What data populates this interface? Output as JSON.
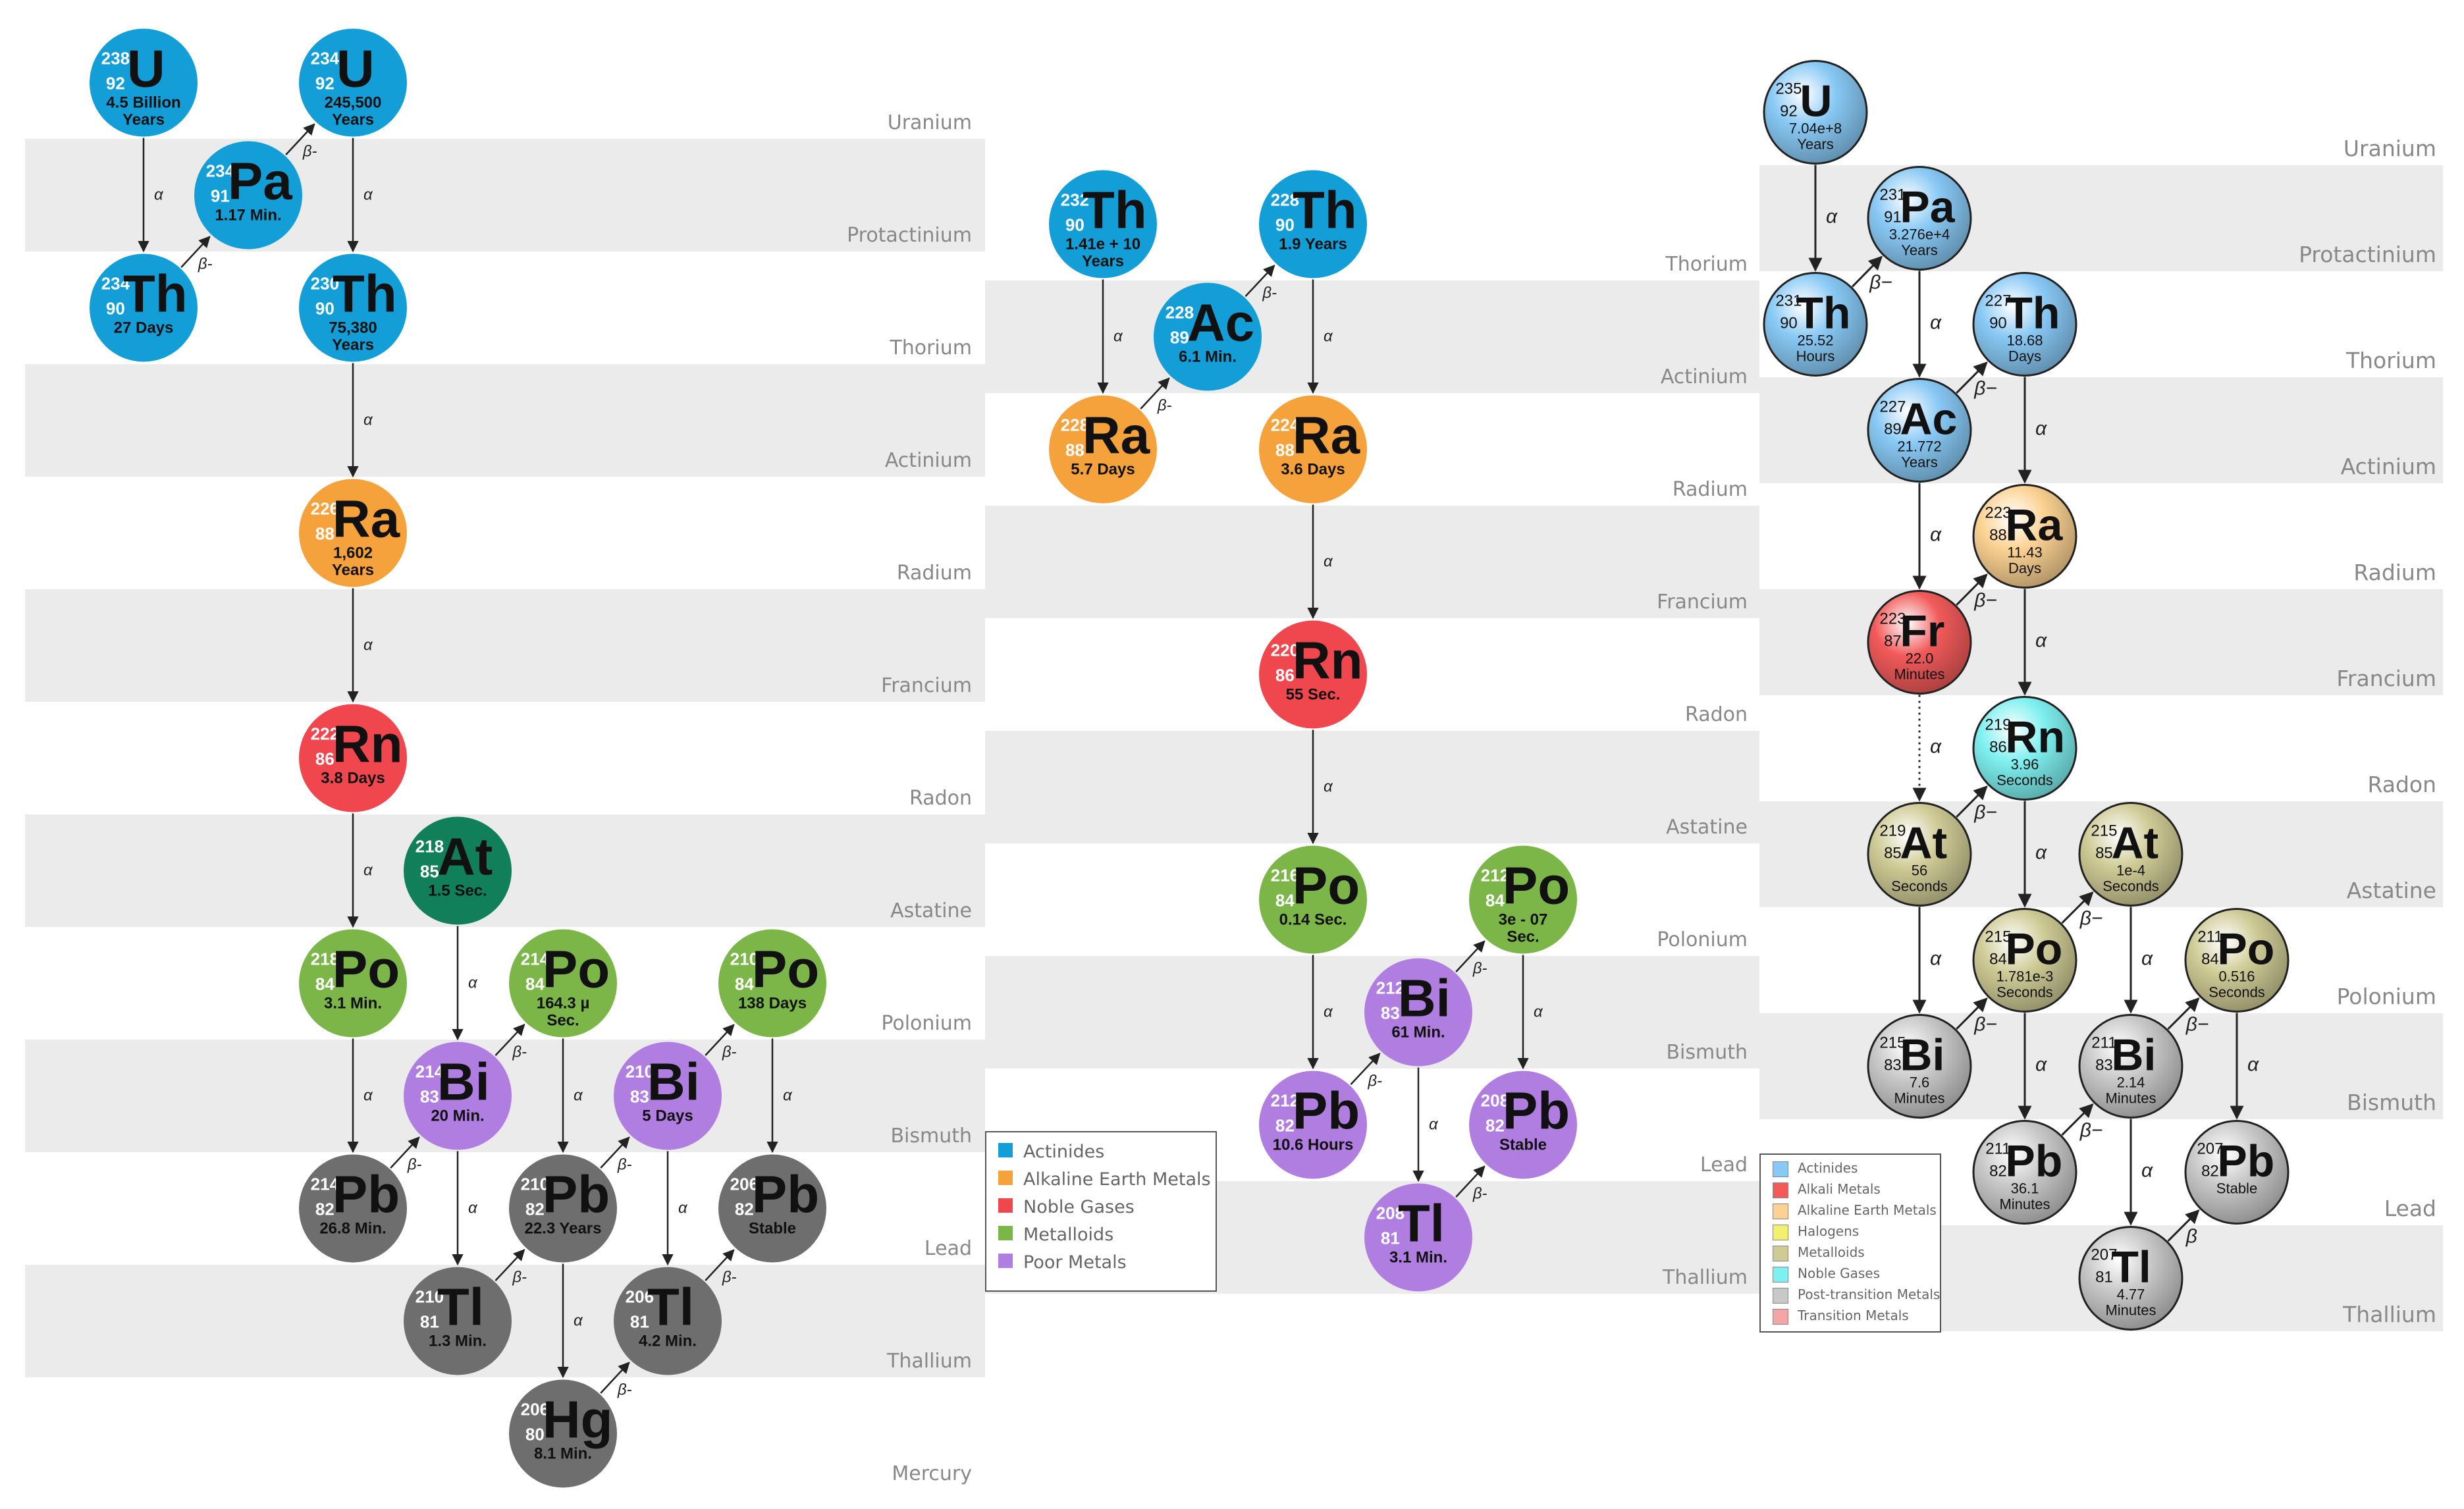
{
  "colors": {
    "actinide": "#139ed8",
    "alkaline": "#f6a23c",
    "noble": "#ef474d",
    "metalloid": "#7cb649",
    "poor": "#b07ee1",
    "gray": "#6e6e6e",
    "teal": "#117f59",
    "band": "#ebebeb",
    "label": "#888888"
  },
  "panel1": {
    "rows": [
      "Uranium",
      "Protactinium",
      "Thorium",
      "Actinium",
      "Radium",
      "Francium",
      "Radon",
      "Astatine",
      "Polonium",
      "Bismuth",
      "Lead",
      "Thallium",
      "Mercury"
    ],
    "nodes": [
      {
        "id": "U238",
        "symbol": "U",
        "mass": "238",
        "number": "92",
        "halflife": [
          "4.5 Billion",
          "Years"
        ],
        "color": "actinide"
      },
      {
        "id": "U234",
        "symbol": "U",
        "mass": "234",
        "number": "92",
        "halflife": [
          "245,500",
          "Years"
        ],
        "color": "actinide"
      },
      {
        "id": "Pa234",
        "symbol": "Pa",
        "mass": "234",
        "number": "91",
        "halflife": [
          "1.17 Min."
        ],
        "color": "actinide"
      },
      {
        "id": "Th234",
        "symbol": "Th",
        "mass": "234",
        "number": "90",
        "halflife": [
          "27 Days"
        ],
        "color": "actinide"
      },
      {
        "id": "Th230",
        "symbol": "Th",
        "mass": "230",
        "number": "90",
        "halflife": [
          "75,380",
          "Years"
        ],
        "color": "actinide"
      },
      {
        "id": "Ra226",
        "symbol": "Ra",
        "mass": "226",
        "number": "88",
        "halflife": [
          "1,602",
          "Years"
        ],
        "color": "alkaline"
      },
      {
        "id": "Rn222",
        "symbol": "Rn",
        "mass": "222",
        "number": "86",
        "halflife": [
          "3.8 Days"
        ],
        "color": "noble"
      },
      {
        "id": "At218",
        "symbol": "At",
        "mass": "218",
        "number": "85",
        "halflife": [
          "1.5 Sec."
        ],
        "color": "teal"
      },
      {
        "id": "Po218",
        "symbol": "Po",
        "mass": "218",
        "number": "84",
        "halflife": [
          "3.1 Min."
        ],
        "color": "metalloid"
      },
      {
        "id": "Po214",
        "symbol": "Po",
        "mass": "214",
        "number": "84",
        "halflife": [
          "164.3 µ",
          "Sec."
        ],
        "color": "metalloid"
      },
      {
        "id": "Po210",
        "symbol": "Po",
        "mass": "210",
        "number": "84",
        "halflife": [
          "138 Days"
        ],
        "color": "metalloid"
      },
      {
        "id": "Bi214",
        "symbol": "Bi",
        "mass": "214",
        "number": "83",
        "halflife": [
          "20 Min."
        ],
        "color": "poor"
      },
      {
        "id": "Bi210",
        "symbol": "Bi",
        "mass": "210",
        "number": "83",
        "halflife": [
          "5 Days"
        ],
        "color": "poor"
      },
      {
        "id": "Pb214",
        "symbol": "Pb",
        "mass": "214",
        "number": "82",
        "halflife": [
          "26.8 Min."
        ],
        "color": "gray"
      },
      {
        "id": "Pb210",
        "symbol": "Pb",
        "mass": "210",
        "number": "82",
        "halflife": [
          "22.3 Years"
        ],
        "color": "gray"
      },
      {
        "id": "Pb206",
        "symbol": "Pb",
        "mass": "206",
        "number": "82",
        "halflife": [
          "Stable"
        ],
        "color": "gray"
      },
      {
        "id": "Tl210",
        "symbol": "Tl",
        "mass": "210",
        "number": "81",
        "halflife": [
          "1.3 Min."
        ],
        "color": "gray"
      },
      {
        "id": "Tl206",
        "symbol": "Tl",
        "mass": "206",
        "number": "81",
        "halflife": [
          "4.2 Min."
        ],
        "color": "gray"
      },
      {
        "id": "Hg206",
        "symbol": "Hg",
        "mass": "206",
        "number": "80",
        "halflife": [
          "8.1 Min."
        ],
        "color": "gray"
      }
    ],
    "decays": [
      {
        "from": "U238",
        "to": "Th234",
        "label": "α"
      },
      {
        "from": "Th234",
        "to": "Pa234",
        "label": "β-"
      },
      {
        "from": "Pa234",
        "to": "U234",
        "label": "β-"
      },
      {
        "from": "U234",
        "to": "Th230",
        "label": "α"
      },
      {
        "from": "Th230",
        "to": "Ra226",
        "label": "α"
      },
      {
        "from": "Ra226",
        "to": "Rn222",
        "label": "α"
      },
      {
        "from": "Rn222",
        "to": "Po218",
        "label": "α"
      },
      {
        "from": "Po218",
        "to": "Pb214",
        "label": "α"
      },
      {
        "from": "At218",
        "to": "Bi214",
        "label": "α"
      },
      {
        "from": "Pb214",
        "to": "Bi214",
        "label": "β-"
      },
      {
        "from": "Bi214",
        "to": "Po214",
        "label": "β-"
      },
      {
        "from": "Bi214",
        "to": "Tl210",
        "label": "α"
      },
      {
        "from": "Po214",
        "to": "Pb210",
        "label": "α"
      },
      {
        "from": "Tl210",
        "to": "Pb210",
        "label": "β-"
      },
      {
        "from": "Pb210",
        "to": "Bi210",
        "label": "β-"
      },
      {
        "from": "Pb210",
        "to": "Hg206",
        "label": "α"
      },
      {
        "from": "Bi210",
        "to": "Po210",
        "label": "β-"
      },
      {
        "from": "Bi210",
        "to": "Tl206",
        "label": "α"
      },
      {
        "from": "Hg206",
        "to": "Tl206",
        "label": "β-"
      },
      {
        "from": "Po210",
        "to": "Pb206",
        "label": "α"
      },
      {
        "from": "Tl206",
        "to": "Pb206",
        "label": "β-"
      }
    ]
  },
  "panel2": {
    "rows": [
      "Thorium",
      "Actinium",
      "Radium",
      "Francium",
      "Radon",
      "Astatine",
      "Polonium",
      "Bismuth",
      "Lead",
      "Thallium"
    ],
    "nodes": [
      {
        "id": "Th232",
        "symbol": "Th",
        "mass": "232",
        "number": "90",
        "halflife": [
          "1.41e + 10",
          "Years"
        ],
        "color": "actinide"
      },
      {
        "id": "Th228",
        "symbol": "Th",
        "mass": "228",
        "number": "90",
        "halflife": [
          "1.9 Years"
        ],
        "color": "actinide"
      },
      {
        "id": "Ac228",
        "symbol": "Ac",
        "mass": "228",
        "number": "89",
        "halflife": [
          "6.1 Min."
        ],
        "color": "actinide"
      },
      {
        "id": "Ra228",
        "symbol": "Ra",
        "mass": "228",
        "number": "88",
        "halflife": [
          "5.7 Days"
        ],
        "color": "alkaline"
      },
      {
        "id": "Ra224",
        "symbol": "Ra",
        "mass": "224",
        "number": "88",
        "halflife": [
          "3.6 Days"
        ],
        "color": "alkaline"
      },
      {
        "id": "Rn220",
        "symbol": "Rn",
        "mass": "220",
        "number": "86",
        "halflife": [
          "55 Sec."
        ],
        "color": "noble"
      },
      {
        "id": "Po216",
        "symbol": "Po",
        "mass": "216",
        "number": "84",
        "halflife": [
          "0.14 Sec."
        ],
        "color": "metalloid"
      },
      {
        "id": "Po212",
        "symbol": "Po",
        "mass": "212",
        "number": "84",
        "halflife": [
          "3e - 07",
          "Sec."
        ],
        "color": "metalloid"
      },
      {
        "id": "Bi212",
        "symbol": "Bi",
        "mass": "212",
        "number": "83",
        "halflife": [
          "61 Min."
        ],
        "color": "poor"
      },
      {
        "id": "Pb212",
        "symbol": "Pb",
        "mass": "212",
        "number": "82",
        "halflife": [
          "10.6 Hours"
        ],
        "color": "poor"
      },
      {
        "id": "Pb208",
        "symbol": "Pb",
        "mass": "208",
        "number": "82",
        "halflife": [
          "Stable"
        ],
        "color": "poor"
      },
      {
        "id": "Tl208",
        "symbol": "Tl",
        "mass": "208",
        "number": "81",
        "halflife": [
          "3.1 Min."
        ],
        "color": "poor"
      }
    ],
    "decays": [
      {
        "from": "Th232",
        "to": "Ra228",
        "label": "α"
      },
      {
        "from": "Ra228",
        "to": "Ac228",
        "label": "β-"
      },
      {
        "from": "Ac228",
        "to": "Th228",
        "label": "β-"
      },
      {
        "from": "Th228",
        "to": "Ra224",
        "label": "α"
      },
      {
        "from": "Ra224",
        "to": "Rn220",
        "label": "α"
      },
      {
        "from": "Rn220",
        "to": "Po216",
        "label": "α"
      },
      {
        "from": "Po216",
        "to": "Pb212",
        "label": "α"
      },
      {
        "from": "Pb212",
        "to": "Bi212",
        "label": "β-"
      },
      {
        "from": "Bi212",
        "to": "Po212",
        "label": "β-"
      },
      {
        "from": "Bi212",
        "to": "Tl208",
        "label": "α"
      },
      {
        "from": "Po212",
        "to": "Pb208",
        "label": "α"
      },
      {
        "from": "Tl208",
        "to": "Pb208",
        "label": "β-"
      }
    ],
    "legend": [
      {
        "label": "Actinides",
        "color": "actinide"
      },
      {
        "label": "Alkaline Earth Metals",
        "color": "alkaline"
      },
      {
        "label": "Noble Gases",
        "color": "noble"
      },
      {
        "label": "Metalloids",
        "color": "metalloid"
      },
      {
        "label": "Poor Metals",
        "color": "poor"
      }
    ]
  },
  "panel3": {
    "colors": {
      "actinide": "#88c9f5",
      "alkali": "#f25a5a",
      "alkaline": "#fcd292",
      "halogen": "#f2f06e",
      "metalloid": "#cfcb96",
      "noble": "#7ff0f0",
      "post": "#c8c8c8",
      "transition": "#f5a5a5"
    },
    "rows": [
      "Uranium",
      "Protactinium",
      "Thorium",
      "Actinium",
      "Radium",
      "Francium",
      "Radon",
      "Astatine",
      "Polonium",
      "Bismuth",
      "Lead",
      "Thallium"
    ],
    "nodes": [
      {
        "id": "U235",
        "symbol": "U",
        "mass": "235",
        "number": "92",
        "halflife": [
          "7.04e+8",
          "Years"
        ],
        "color": "actinide"
      },
      {
        "id": "Pa231",
        "symbol": "Pa",
        "mass": "231",
        "number": "91",
        "halflife": [
          "3.276e+4",
          "Years"
        ],
        "color": "actinide"
      },
      {
        "id": "Th231",
        "symbol": "Th",
        "mass": "231",
        "number": "90",
        "halflife": [
          "25.52",
          "Hours"
        ],
        "color": "actinide"
      },
      {
        "id": "Th227",
        "symbol": "Th",
        "mass": "227",
        "number": "90",
        "halflife": [
          "18.68",
          "Days"
        ],
        "color": "actinide"
      },
      {
        "id": "Ac227",
        "symbol": "Ac",
        "mass": "227",
        "number": "89",
        "halflife": [
          "21.772",
          "Years"
        ],
        "color": "actinide"
      },
      {
        "id": "Ra223",
        "symbol": "Ra",
        "mass": "223",
        "number": "88",
        "halflife": [
          "11.43",
          "Days"
        ],
        "color": "alkaline"
      },
      {
        "id": "Fr223",
        "symbol": "Fr",
        "mass": "223",
        "number": "87",
        "halflife": [
          "22.0",
          "Minutes"
        ],
        "color": "alkali"
      },
      {
        "id": "Rn219",
        "symbol": "Rn",
        "mass": "219",
        "number": "86",
        "halflife": [
          "3.96",
          "Seconds"
        ],
        "color": "noble"
      },
      {
        "id": "At219",
        "symbol": "At",
        "mass": "219",
        "number": "85",
        "halflife": [
          "56",
          "Seconds"
        ],
        "color": "metalloid"
      },
      {
        "id": "At215",
        "symbol": "At",
        "mass": "215",
        "number": "85",
        "halflife": [
          "1e-4",
          "Seconds"
        ],
        "color": "metalloid"
      },
      {
        "id": "Po215",
        "symbol": "Po",
        "mass": "215",
        "number": "84",
        "halflife": [
          "1.781e-3",
          "Seconds"
        ],
        "color": "metalloid"
      },
      {
        "id": "Po211",
        "symbol": "Po",
        "mass": "211",
        "number": "84",
        "halflife": [
          "0.516",
          "Seconds"
        ],
        "color": "metalloid"
      },
      {
        "id": "Bi215",
        "symbol": "Bi",
        "mass": "215",
        "number": "83",
        "halflife": [
          "7.6",
          "Minutes"
        ],
        "color": "post"
      },
      {
        "id": "Bi211",
        "symbol": "Bi",
        "mass": "211",
        "number": "83",
        "halflife": [
          "2.14",
          "Minutes"
        ],
        "color": "post"
      },
      {
        "id": "Pb211",
        "symbol": "Pb",
        "mass": "211",
        "number": "82",
        "halflife": [
          "36.1",
          "Minutes"
        ],
        "color": "post"
      },
      {
        "id": "Pb207",
        "symbol": "Pb",
        "mass": "207",
        "number": "82",
        "halflife": [
          "Stable"
        ],
        "color": "post"
      },
      {
        "id": "Tl207",
        "symbol": "Tl",
        "mass": "207",
        "number": "81",
        "halflife": [
          "4.77",
          "Minutes"
        ],
        "color": "post"
      }
    ],
    "decays": [
      {
        "from": "U235",
        "to": "Th231",
        "label": "α"
      },
      {
        "from": "Th231",
        "to": "Pa231",
        "label": "β−"
      },
      {
        "from": "Pa231",
        "to": "Ac227",
        "label": "α"
      },
      {
        "from": "Ac227",
        "to": "Th227",
        "label": "β−"
      },
      {
        "from": "Ac227",
        "to": "Fr223",
        "label": "α"
      },
      {
        "from": "Th227",
        "to": "Ra223",
        "label": "α"
      },
      {
        "from": "Fr223",
        "to": "Ra223",
        "label": "β−"
      },
      {
        "from": "Fr223",
        "to": "At219",
        "label": "α",
        "dotted": true
      },
      {
        "from": "Ra223",
        "to": "Rn219",
        "label": "α"
      },
      {
        "from": "At219",
        "to": "Rn219",
        "label": "β−"
      },
      {
        "from": "At219",
        "to": "Bi215",
        "label": "α"
      },
      {
        "from": "Rn219",
        "to": "Po215",
        "label": "α"
      },
      {
        "from": "Bi215",
        "to": "Po215",
        "label": "β−"
      },
      {
        "from": "Po215",
        "to": "At215",
        "label": "β−"
      },
      {
        "from": "Po215",
        "to": "Pb211",
        "label": "α"
      },
      {
        "from": "At215",
        "to": "Bi211",
        "label": "α"
      },
      {
        "from": "Pb211",
        "to": "Bi211",
        "label": "β−"
      },
      {
        "from": "Bi211",
        "to": "Po211",
        "label": "β−"
      },
      {
        "from": "Bi211",
        "to": "Tl207",
        "label": "α"
      },
      {
        "from": "Po211",
        "to": "Pb207",
        "label": "α"
      },
      {
        "from": "Tl207",
        "to": "Pb207",
        "label": "β"
      }
    ],
    "legend": [
      {
        "label": "Actinides",
        "color": "actinide"
      },
      {
        "label": "Alkali Metals",
        "color": "alkali"
      },
      {
        "label": "Alkaline Earth Metals",
        "color": "alkaline"
      },
      {
        "label": "Halogens",
        "color": "halogen"
      },
      {
        "label": "Metalloids",
        "color": "metalloid"
      },
      {
        "label": "Noble Gases",
        "color": "noble"
      },
      {
        "label": "Post-transition Metals",
        "color": "post"
      },
      {
        "label": "Transition Metals",
        "color": "transition"
      }
    ]
  }
}
